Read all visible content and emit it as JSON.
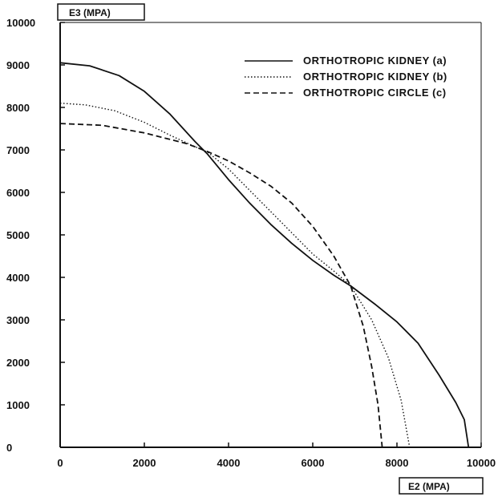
{
  "chart_data": {
    "type": "line",
    "title": "",
    "xlabel": "E2 (MPA)",
    "ylabel": "E3 (MPA)",
    "xlim": [
      0,
      10000
    ],
    "ylim": [
      0,
      10000
    ],
    "x_ticks": [
      0,
      2000,
      4000,
      6000,
      8000,
      10000
    ],
    "y_ticks": [
      0,
      1000,
      2000,
      3000,
      4000,
      5000,
      6000,
      7000,
      8000,
      9000,
      10000
    ],
    "x_tick_labels": [
      "0",
      "2000",
      "4000",
      "6000",
      "8000",
      "10000"
    ],
    "y_tick_labels": [
      "0",
      "1000",
      "2000",
      "3000",
      "4000",
      "5000",
      "6000",
      "7000",
      "8000",
      "9000",
      "10000"
    ],
    "grid": false,
    "legend_position": "top-right",
    "series": [
      {
        "name": "ORTHOTROPIC KIDNEY (a)",
        "style": "solid",
        "x": [
          0,
          700,
          1400,
          2000,
          2600,
          3200,
          3500,
          4000,
          4500,
          5000,
          5500,
          6000,
          6500,
          6900,
          7500,
          8000,
          8500,
          9000,
          9400,
          9600,
          9700
        ],
        "y": [
          9050,
          8980,
          8750,
          8380,
          7850,
          7200,
          6900,
          6300,
          5750,
          5250,
          4800,
          4400,
          4050,
          3800,
          3350,
          2950,
          2450,
          1700,
          1050,
          650,
          0
        ]
      },
      {
        "name": "ORTHOTROPIC KIDNEY (b)",
        "style": "dotted",
        "x": [
          0,
          600,
          1300,
          2000,
          2600,
          3100,
          3500,
          4000,
          4500,
          5000,
          5500,
          6000,
          6500,
          6900,
          7400,
          7800,
          8100,
          8300
        ],
        "y": [
          8100,
          8060,
          7920,
          7650,
          7350,
          7120,
          6950,
          6550,
          6050,
          5550,
          5050,
          4550,
          4150,
          3800,
          3000,
          2100,
          1100,
          0
        ]
      },
      {
        "name": "ORTHOTROPIC CIRCLE (c)",
        "style": "dashed",
        "x": [
          0,
          1000,
          2000,
          3000,
          3500,
          4000,
          4500,
          5000,
          5500,
          6000,
          6500,
          6900,
          7200,
          7400,
          7550,
          7650
        ],
        "y": [
          7620,
          7580,
          7400,
          7150,
          6960,
          6740,
          6460,
          6150,
          5750,
          5200,
          4500,
          3800,
          2850,
          1900,
          1000,
          0
        ]
      }
    ]
  }
}
